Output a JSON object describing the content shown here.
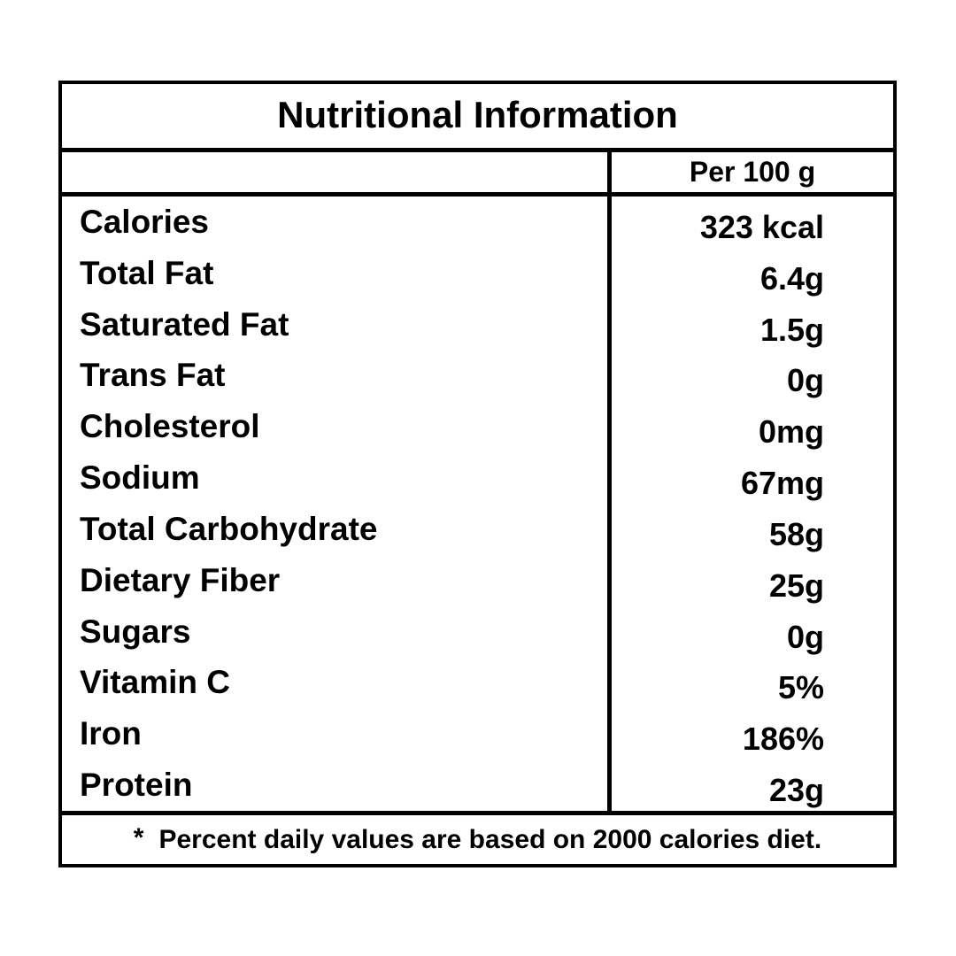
{
  "table": {
    "title": "Nutritional Information",
    "column_header": "Per 100 g",
    "rows": [
      {
        "label": "Calories",
        "value": "323 kcal"
      },
      {
        "label": "Total Fat",
        "value": "6.4g"
      },
      {
        "label": "Saturated Fat",
        "value": "1.5g"
      },
      {
        "label": "Trans Fat",
        "value": "0g"
      },
      {
        "label": "Cholesterol",
        "value": "0mg"
      },
      {
        "label": "Sodium",
        "value": "67mg"
      },
      {
        "label": "Total Carbohydrate",
        "value": "58g"
      },
      {
        "label": "Dietary Fiber",
        "value": "25g"
      },
      {
        "label": "Sugars",
        "value": "0g"
      },
      {
        "label": "Vitamin C",
        "value": "5%"
      },
      {
        "label": "Iron",
        "value": "186%"
      },
      {
        "label": "Protein",
        "value": "23g"
      }
    ],
    "footnote_marker": "*",
    "footnote_text": "Percent daily values are based on 2000 calories diet.",
    "colors": {
      "border": "#000000",
      "text": "#000000",
      "background": "#ffffff"
    }
  }
}
